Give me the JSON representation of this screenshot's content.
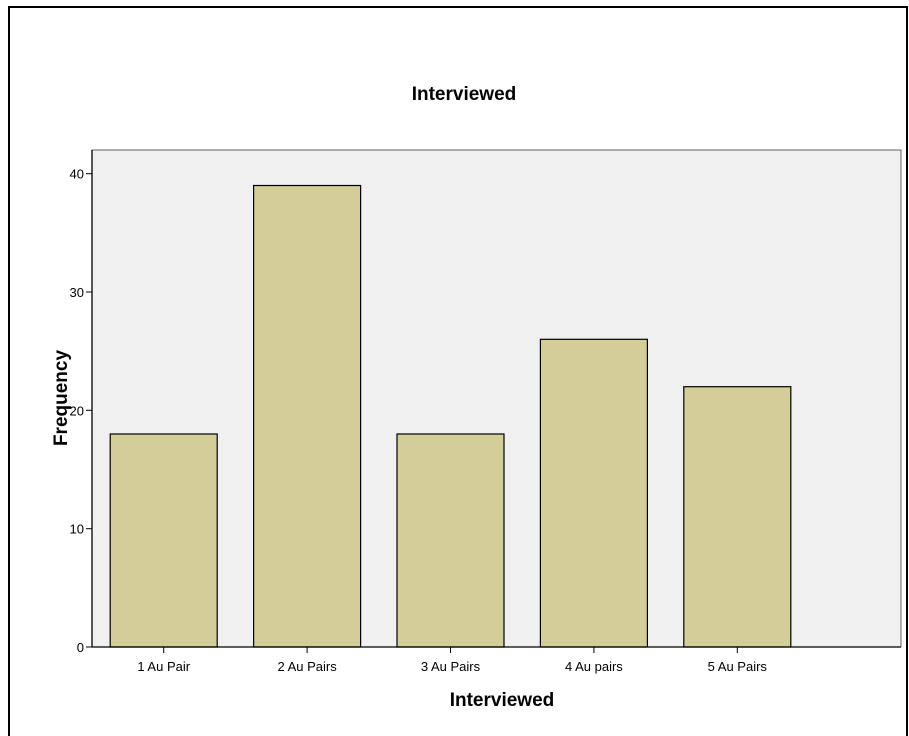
{
  "chart_data": {
    "type": "bar",
    "title": "Interviewed",
    "xlabel": "Interviewed",
    "ylabel": "Frequency",
    "categories": [
      "1 Au Pair",
      "2 Au Pairs",
      "3 Au Pairs",
      "4 Au pairs",
      "5 Au Pairs"
    ],
    "values": [
      18,
      39,
      18,
      26,
      22
    ],
    "ylim": [
      0,
      42
    ],
    "yticks": [
      0,
      10,
      20,
      30,
      40
    ],
    "grid": false,
    "colors": {
      "bar_fill": "#d3ce97",
      "bar_stroke": "#000000",
      "plot_background": "#f0f0f0",
      "page_background": "#ffffff"
    }
  }
}
